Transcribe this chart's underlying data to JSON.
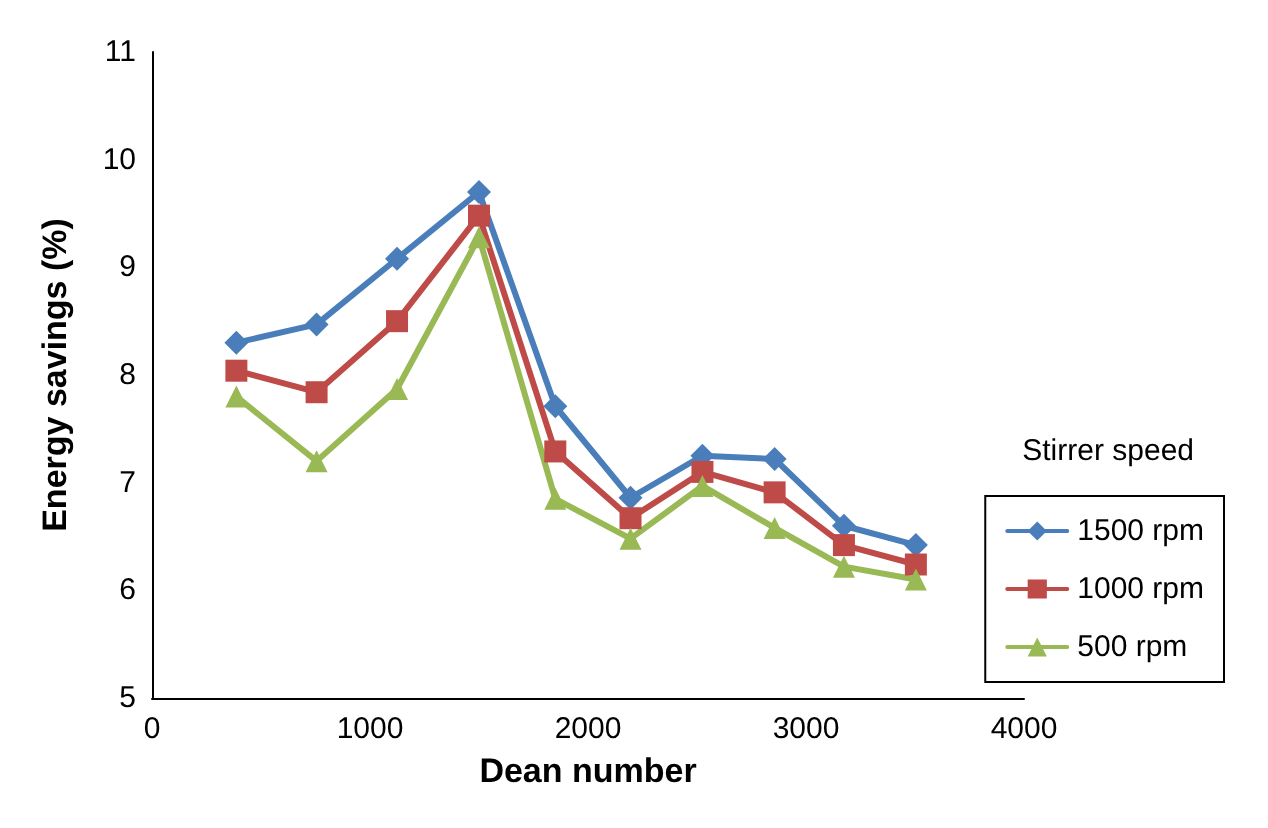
{
  "chart_data": {
    "type": "line",
    "xlabel": "Dean number",
    "ylabel": "Energy savings (%)",
    "legend_title": "Stirrer speed",
    "x": [
      387,
      755,
      1124,
      1500,
      1850,
      2195,
      2525,
      2856,
      3174,
      3504
    ],
    "series": [
      {
        "name": "1500 rpm",
        "color": "#4a7ebb",
        "marker": "diamond",
        "values": [
          8.3,
          8.47,
          9.08,
          9.7,
          7.71,
          6.86,
          7.25,
          7.22,
          6.6,
          6.42
        ]
      },
      {
        "name": "1000 rpm",
        "color": "#be4b48",
        "marker": "square",
        "values": [
          8.04,
          7.84,
          8.5,
          9.48,
          7.29,
          6.67,
          7.1,
          6.91,
          6.42,
          6.24
        ]
      },
      {
        "name": "500 rpm",
        "color": "#98b954",
        "marker": "triangle",
        "values": [
          7.8,
          7.2,
          7.87,
          9.28,
          6.85,
          6.48,
          6.97,
          6.58,
          6.22,
          6.1
        ]
      }
    ],
    "xlim": [
      0,
      4000
    ],
    "xticks": [
      0,
      1000,
      2000,
      3000,
      4000
    ],
    "ylim": [
      5,
      11
    ],
    "yticks": [
      5,
      6,
      7,
      8,
      9,
      10,
      11
    ],
    "grid": false,
    "legend": "right",
    "line_style": "solid"
  }
}
